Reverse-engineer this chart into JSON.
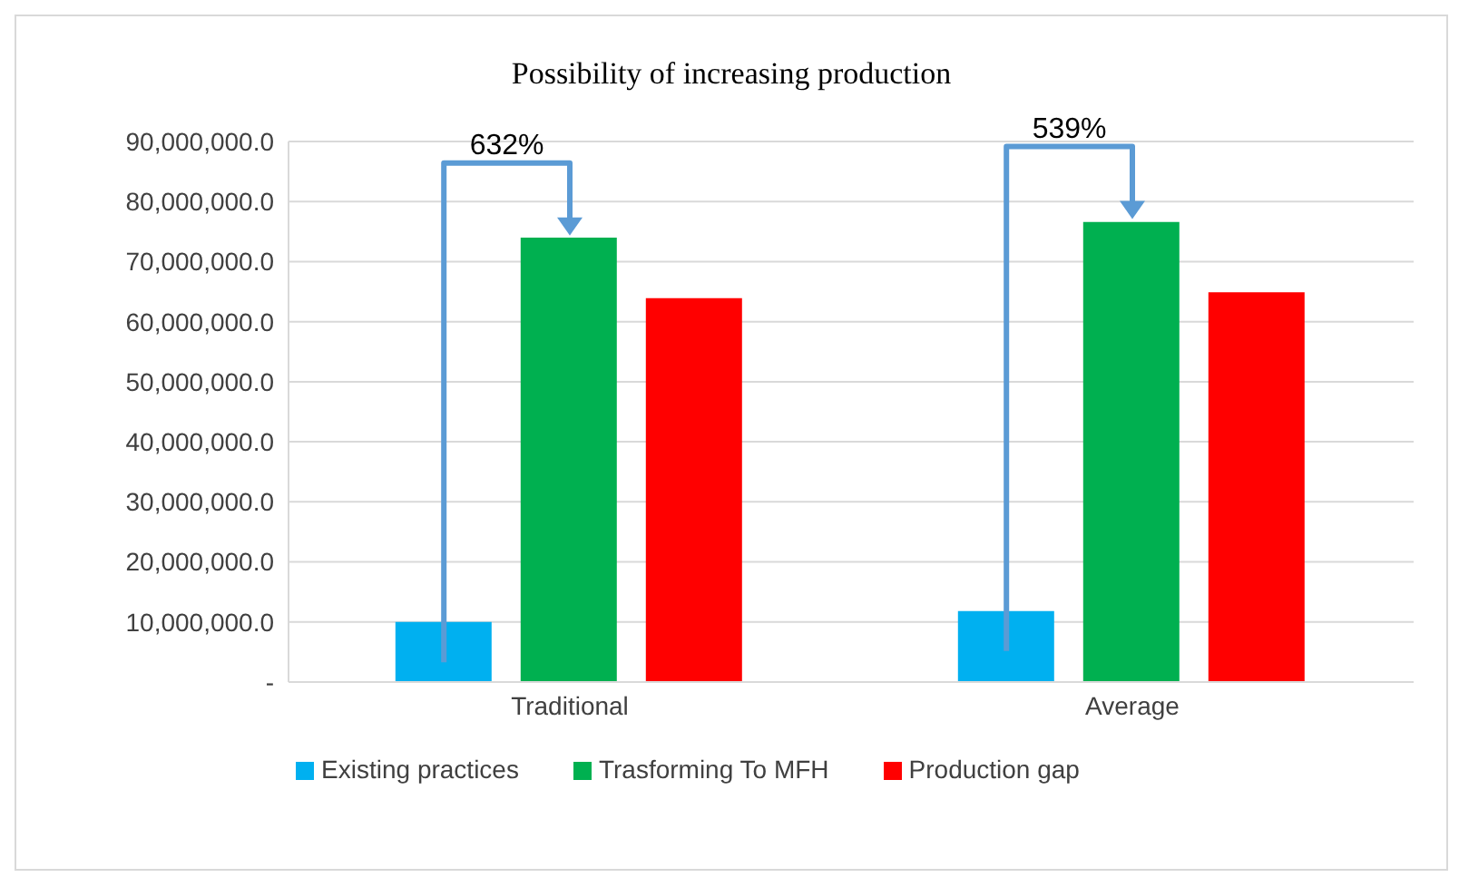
{
  "chart_data": {
    "type": "bar",
    "title": "Possibility of increasing production",
    "categories": [
      "Traditional",
      "Average"
    ],
    "series": [
      {
        "name": "Existing practices",
        "color": "#00b0f0",
        "values": [
          10000000,
          11800000
        ]
      },
      {
        "name": "Trasforming To MFH",
        "color": "#00b050",
        "values": [
          74000000,
          76600000
        ]
      },
      {
        "name": "Production gap",
        "color": "#ff0000",
        "values": [
          63900000,
          64900000
        ]
      }
    ],
    "ylim": [
      0,
      90000000
    ],
    "yticks": [
      {
        "value": 0,
        "label": "-"
      },
      {
        "value": 10000000,
        "label": "10,000,000.0"
      },
      {
        "value": 20000000,
        "label": "20,000,000.0"
      },
      {
        "value": 30000000,
        "label": "30,000,000.0"
      },
      {
        "value": 40000000,
        "label": "40,000,000.0"
      },
      {
        "value": 50000000,
        "label": "50,000,000.0"
      },
      {
        "value": 60000000,
        "label": "60,000,000.0"
      },
      {
        "value": 70000000,
        "label": "70,000,000.0"
      },
      {
        "value": 80000000,
        "label": "80,000,000.0"
      },
      {
        "value": 90000000,
        "label": "90,000,000.0"
      }
    ],
    "annotations": [
      "632%",
      "539%"
    ],
    "grid": "y",
    "legend": "bottom"
  }
}
